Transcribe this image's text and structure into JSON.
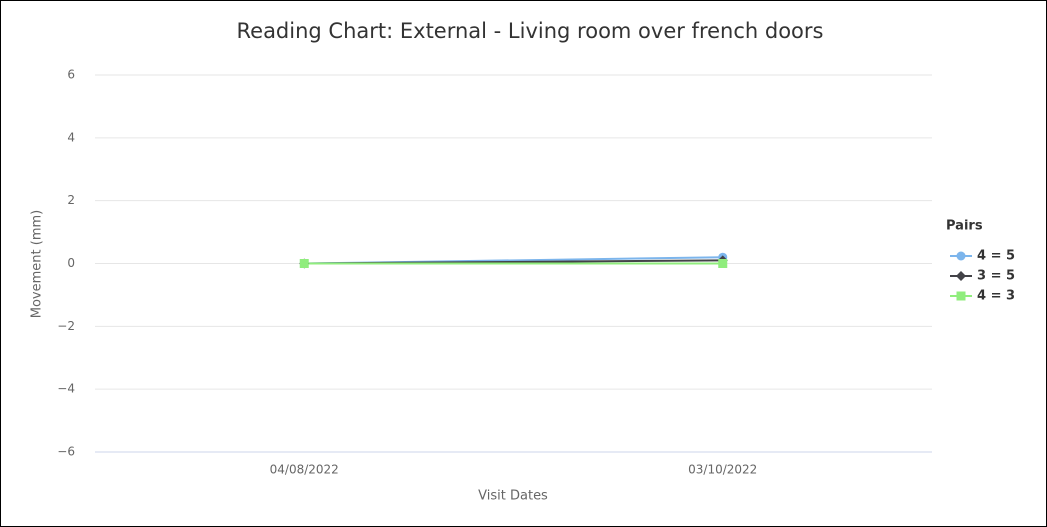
{
  "chart_data": {
    "type": "line",
    "title": "Reading Chart: External - Living room over french doors",
    "x_label": "Visit Dates",
    "y_label": "Movement (mm)",
    "categories": [
      "04/08/2022",
      "03/10/2022"
    ],
    "series": [
      {
        "name": "4 = 5",
        "color": "#7cb5ec",
        "marker": "circle",
        "values": [
          0,
          0.2
        ]
      },
      {
        "name": "3 = 5",
        "color": "#434348",
        "marker": "diamond",
        "values": [
          0,
          0.1
        ]
      },
      {
        "name": "4 = 3",
        "color": "#90ed7d",
        "marker": "square",
        "values": [
          0,
          0
        ]
      }
    ],
    "ylim": [
      -6,
      6
    ],
    "yticks": [
      {
        "value": -6,
        "label": "−6"
      },
      {
        "value": -4,
        "label": "−4"
      },
      {
        "value": -2,
        "label": "−2"
      },
      0,
      2,
      4,
      6
    ],
    "grid": true,
    "legend_title": "Pairs",
    "legend_position": "right"
  }
}
